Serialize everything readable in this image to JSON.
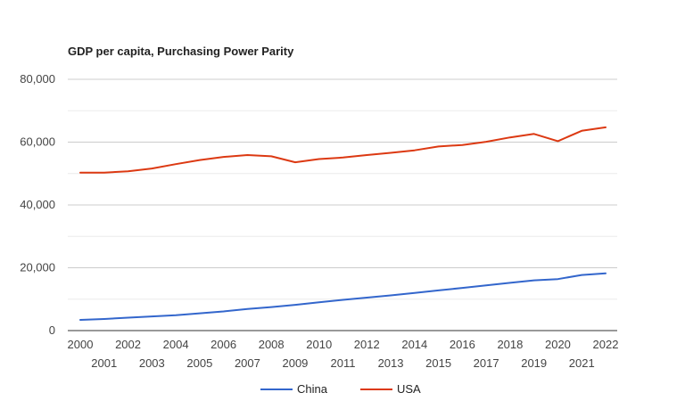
{
  "chart_data": {
    "type": "line",
    "title": "GDP per capita, Purchasing Power Parity",
    "xlabel": "",
    "ylabel": "",
    "x": [
      "2000",
      "2001",
      "2002",
      "2003",
      "2004",
      "2005",
      "2006",
      "2007",
      "2008",
      "2009",
      "2010",
      "2011",
      "2012",
      "2013",
      "2014",
      "2015",
      "2016",
      "2017",
      "2018",
      "2019",
      "2020",
      "2021",
      "2022"
    ],
    "ylim": [
      0,
      80000
    ],
    "yticks": [
      0,
      20000,
      40000,
      60000,
      80000
    ],
    "ytick_labels": [
      "0",
      "20,000",
      "40,000",
      "60,000",
      "80,000"
    ],
    "grid": true,
    "legend_position": "bottom",
    "series": [
      {
        "name": "China",
        "color": "#3366cc",
        "values": [
          3400,
          3700,
          4100,
          4500,
          4900,
          5500,
          6100,
          6900,
          7500,
          8200,
          9000,
          9800,
          10500,
          11200,
          12000,
          12800,
          13600,
          14400,
          15200,
          16000,
          16400,
          17700,
          18200
        ]
      },
      {
        "name": "USA",
        "color": "#dc3912",
        "values": [
          50300,
          50300,
          50700,
          51600,
          53000,
          54300,
          55300,
          55900,
          55500,
          53600,
          54600,
          55100,
          55900,
          56600,
          57400,
          58600,
          59100,
          60100,
          61500,
          62600,
          60300,
          63600,
          64700
        ]
      }
    ]
  }
}
